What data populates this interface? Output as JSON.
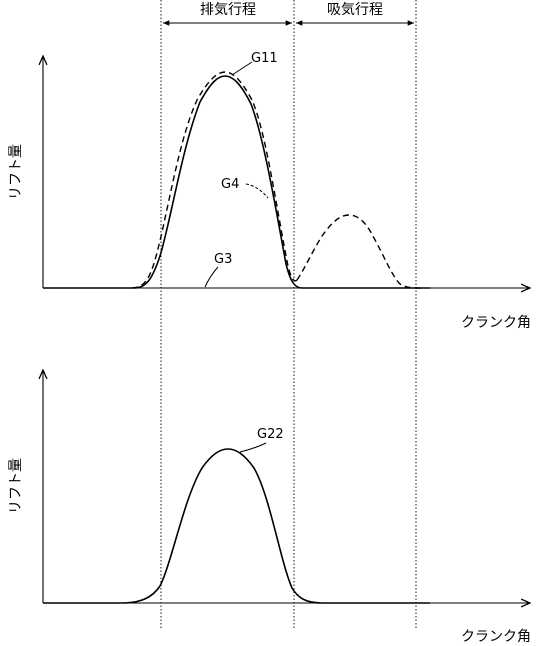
{
  "strokes": {
    "header_exhaust": "排気行程",
    "header_intake": "吸気行程"
  },
  "axes": {
    "top_ylabel": "リフト量",
    "top_xlabel": "クランク角",
    "bottom_ylabel": "リフト量",
    "bottom_xlabel": "クランク角"
  },
  "curves": {
    "g11": "G11",
    "g4": "G4",
    "g3": "G3",
    "g22": "G22"
  },
  "colors": {
    "line": "#000000",
    "background": "#ffffff"
  }
}
